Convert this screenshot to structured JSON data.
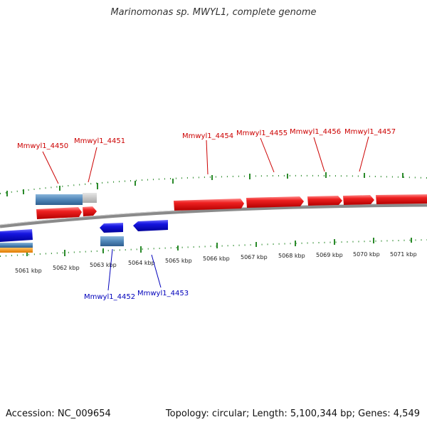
{
  "title": "Marinomonas sp. MWYL1, complete genome",
  "footer": {
    "accession": "Accession: NC_009654",
    "stats": "Topology: circular; Length: 5,100,344 bp; Genes: 4,549"
  },
  "scale": {
    "unit": "kbp",
    "tick_labels": [
      "5061 kbp",
      "5062 kbp",
      "5063 kbp",
      "5064 kbp",
      "5065 kbp",
      "5066 kbp",
      "5067 kbp",
      "5068 kbp",
      "5069 kbp",
      "5070 kbp",
      "5071 kbp"
    ]
  },
  "genes": {
    "forward": [
      "Mmwyl1_4450",
      "Mmwyl1_4451",
      "Mmwyl1_4454",
      "Mmwyl1_4455",
      "Mmwyl1_4456",
      "Mmwyl1_4457"
    ],
    "reverse": [
      "Mmwyl1_4452",
      "Mmwyl1_4453"
    ]
  },
  "colors": {
    "forward_gene": "#e8141c",
    "reverse_gene": "#1010d8",
    "forward_label": "#cc0000",
    "reverse_label": "#0000bb",
    "backbone": "#888888",
    "gc_ticks": "#2a8a2a",
    "rna_feature": "#4f86b8",
    "misc_feature": "#bbbbbb",
    "other_feature": "#f39a1e"
  }
}
